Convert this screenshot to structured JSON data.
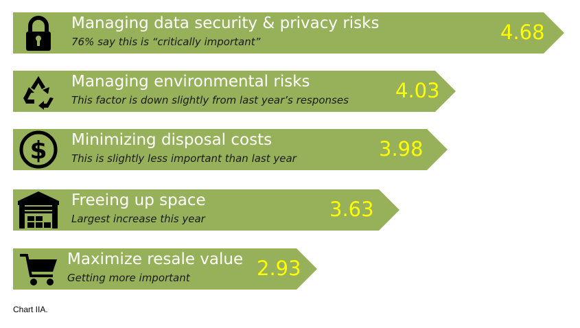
{
  "chart_data": {
    "type": "bar",
    "orientation": "horizontal",
    "bar_color": "#97b15a",
    "value_color": "#ffff00",
    "rows": [
      {
        "title": "Managing data security & privacy risks",
        "note": "76% say this is “critically important”",
        "value": 4.68,
        "value_label": "4.68",
        "icon": "lock-icon"
      },
      {
        "title": "Managing environmental risks",
        "note": "This factor is down slightly from last year’s responses",
        "value": 4.03,
        "value_label": "4.03",
        "icon": "recycle-icon"
      },
      {
        "title": "Minimizing disposal costs",
        "note": "This is slightly less important than last year",
        "value": 3.98,
        "value_label": "3.98",
        "icon": "dollar-icon"
      },
      {
        "title": "Freeing up space",
        "note": "Largest increase this year",
        "value": 3.63,
        "value_label": "3.63",
        "icon": "warehouse-icon"
      },
      {
        "title": "Maximize resale value",
        "note": "Getting more important",
        "value": 2.93,
        "value_label": "2.93",
        "icon": "shopping-cart-icon"
      }
    ]
  },
  "caption": "Chart IIA."
}
